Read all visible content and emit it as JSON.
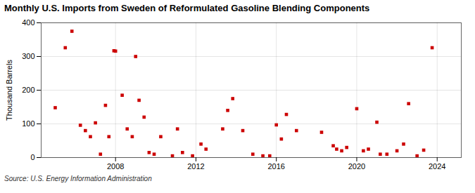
{
  "chart_data": {
    "type": "scatter",
    "title": "Monthly U.S. Imports from Sweden of Reformulated Gasoline Blending Components",
    "ylabel": "Thousand Barrels",
    "source": "Source: U.S. Energy Information Administration",
    "color": "#cc0000",
    "marker": "square",
    "grid": true,
    "xlim": [
      2004.3,
      2025.2
    ],
    "xticks": [
      2008,
      2012,
      2016,
      2020,
      2024
    ],
    "ylim": [
      0,
      400
    ],
    "yticks": [
      0,
      100,
      200,
      300,
      400
    ],
    "x": [
      2005.0,
      2005.5,
      2005.83,
      2006.25,
      2006.5,
      2006.75,
      2007.0,
      2007.25,
      2007.5,
      2007.67,
      2007.92,
      2008.0,
      2008.33,
      2008.58,
      2008.83,
      2009.0,
      2009.17,
      2009.42,
      2009.67,
      2009.92,
      2010.25,
      2010.83,
      2011.08,
      2011.33,
      2011.83,
      2012.25,
      2012.5,
      2013.33,
      2013.58,
      2013.83,
      2014.33,
      2014.83,
      2015.33,
      2015.67,
      2016.0,
      2016.25,
      2016.5,
      2017.0,
      2018.25,
      2018.83,
      2019.0,
      2019.25,
      2019.5,
      2020.0,
      2020.33,
      2020.58,
      2021.0,
      2021.17,
      2021.5,
      2022.0,
      2022.33,
      2022.58,
      2023.0,
      2023.33,
      2023.75
    ],
    "values": [
      148,
      326,
      375,
      96,
      80,
      62,
      103,
      10,
      155,
      62,
      317,
      316,
      185,
      85,
      62,
      300,
      170,
      120,
      15,
      10,
      62,
      5,
      85,
      15,
      5,
      40,
      25,
      85,
      140,
      175,
      80,
      10,
      5,
      5,
      97,
      55,
      128,
      80,
      75,
      35,
      25,
      20,
      30,
      145,
      20,
      25,
      105,
      10,
      10,
      20,
      40,
      160,
      5,
      22,
      326
    ]
  }
}
